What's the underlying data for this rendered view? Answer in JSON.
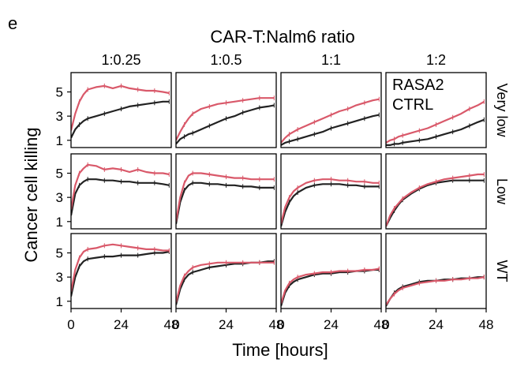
{
  "panel_label": "e",
  "colors": {
    "rasa2": "#d9596a",
    "ctrl": "#222222",
    "frame": "#000000"
  },
  "chart_data": {
    "type": "line",
    "title": "CAR-T:Nalm6 ratio",
    "xlabel": "Time [hours]",
    "ylabel": "Cancer cell killing",
    "xlim": [
      0,
      48
    ],
    "ylim": [
      0.4,
      6.6
    ],
    "xticks": [
      0,
      24,
      48
    ],
    "xtick_labels": [
      "0",
      "24",
      "48"
    ],
    "yticks": [
      1,
      3,
      5
    ],
    "ytick_labels": [
      "1",
      "3",
      "5"
    ],
    "columns": [
      "1:0.25",
      "1:0.5",
      "1:1",
      "1:2"
    ],
    "rows": [
      "Very low",
      "Low",
      "WT"
    ],
    "legend": {
      "placement": "inside top-right panel",
      "entries": [
        {
          "name": "RASA2",
          "color": "#d9596a"
        },
        {
          "name": "CTRL",
          "color": "#222222"
        }
      ]
    },
    "x": [
      0,
      2,
      4,
      6,
      8,
      12,
      16,
      20,
      24,
      28,
      32,
      36,
      40,
      44,
      47
    ],
    "panels": [
      {
        "row": "Very low",
        "col": "1:0.25",
        "series": [
          {
            "name": "RASA2",
            "values": [
              1.8,
              3.2,
              4.2,
              4.8,
              5.2,
              5.4,
              5.5,
              5.3,
              5.5,
              5.3,
              5.2,
              5.1,
              5.1,
              5.0,
              4.9
            ]
          },
          {
            "name": "CTRL",
            "values": [
              1.2,
              1.9,
              2.3,
              2.6,
              2.8,
              3.0,
              3.2,
              3.4,
              3.6,
              3.8,
              3.9,
              4.0,
              4.1,
              4.2,
              4.2
            ]
          }
        ]
      },
      {
        "row": "Very low",
        "col": "1:0.5",
        "series": [
          {
            "name": "RASA2",
            "values": [
              1.0,
              1.7,
              2.3,
              2.8,
              3.2,
              3.6,
              3.8,
              4.0,
              4.1,
              4.2,
              4.3,
              4.4,
              4.5,
              4.5,
              4.5
            ]
          },
          {
            "name": "CTRL",
            "values": [
              0.7,
              1.1,
              1.3,
              1.5,
              1.6,
              1.9,
              2.2,
              2.5,
              2.8,
              3.0,
              3.3,
              3.5,
              3.7,
              3.8,
              3.9
            ]
          }
        ]
      },
      {
        "row": "Very low",
        "col": "1:1",
        "series": [
          {
            "name": "RASA2",
            "values": [
              0.8,
              1.2,
              1.5,
              1.7,
              1.9,
              2.2,
              2.5,
              2.8,
              3.1,
              3.4,
              3.6,
              3.9,
              4.1,
              4.3,
              4.4
            ]
          },
          {
            "name": "CTRL",
            "values": [
              0.6,
              0.8,
              0.9,
              1.0,
              1.1,
              1.3,
              1.5,
              1.7,
              2.0,
              2.2,
              2.4,
              2.6,
              2.8,
              3.0,
              3.1
            ]
          }
        ]
      },
      {
        "row": "Very low",
        "col": "1:2",
        "series": [
          {
            "name": "RASA2",
            "values": [
              0.8,
              1.0,
              1.1,
              1.3,
              1.4,
              1.6,
              1.8,
              2.0,
              2.3,
              2.6,
              2.9,
              3.2,
              3.6,
              3.9,
              4.2
            ]
          },
          {
            "name": "CTRL",
            "values": [
              0.6,
              0.6,
              0.7,
              0.7,
              0.8,
              0.9,
              1.0,
              1.1,
              1.3,
              1.5,
              1.7,
              1.9,
              2.2,
              2.5,
              2.7
            ]
          }
        ]
      },
      {
        "row": "Low",
        "col": "1:0.25",
        "series": [
          {
            "name": "RASA2",
            "values": [
              2.0,
              4.0,
              5.0,
              5.4,
              5.7,
              5.6,
              5.3,
              5.4,
              5.3,
              5.1,
              5.3,
              5.1,
              5.0,
              5.0,
              4.9
            ]
          },
          {
            "name": "CTRL",
            "values": [
              1.5,
              3.3,
              4.0,
              4.3,
              4.5,
              4.5,
              4.4,
              4.4,
              4.3,
              4.3,
              4.2,
              4.2,
              4.2,
              4.1,
              4.0
            ]
          }
        ]
      },
      {
        "row": "Low",
        "col": "1:0.5",
        "series": [
          {
            "name": "RASA2",
            "values": [
              1.0,
              3.0,
              4.2,
              4.8,
              5.0,
              5.0,
              4.9,
              4.8,
              4.7,
              4.6,
              4.6,
              4.5,
              4.5,
              4.5,
              4.5
            ]
          },
          {
            "name": "CTRL",
            "values": [
              0.8,
              2.6,
              3.6,
              4.0,
              4.2,
              4.2,
              4.1,
              4.1,
              4.0,
              4.0,
              3.9,
              3.9,
              3.8,
              3.8,
              3.8
            ]
          }
        ]
      },
      {
        "row": "Low",
        "col": "1:1",
        "series": [
          {
            "name": "RASA2",
            "values": [
              0.8,
              2.2,
              3.0,
              3.5,
              3.8,
              4.2,
              4.4,
              4.5,
              4.5,
              4.4,
              4.4,
              4.3,
              4.3,
              4.2,
              4.2
            ]
          },
          {
            "name": "CTRL",
            "values": [
              0.6,
              1.8,
              2.6,
              3.1,
              3.4,
              3.8,
              4.0,
              4.1,
              4.1,
              4.1,
              4.0,
              4.0,
              3.9,
              3.9,
              3.9
            ]
          }
        ]
      },
      {
        "row": "Low",
        "col": "1:2",
        "series": [
          {
            "name": "RASA2",
            "values": [
              0.6,
              1.5,
              2.1,
              2.5,
              2.9,
              3.4,
              3.8,
              4.1,
              4.3,
              4.5,
              4.6,
              4.7,
              4.8,
              4.9,
              4.9
            ]
          },
          {
            "name": "CTRL",
            "values": [
              0.6,
              1.3,
              1.9,
              2.4,
              2.8,
              3.3,
              3.7,
              4.0,
              4.2,
              4.3,
              4.4,
              4.4,
              4.4,
              4.4,
              4.4
            ]
          }
        ]
      },
      {
        "row": "WT",
        "col": "1:0.25",
        "series": [
          {
            "name": "RASA2",
            "values": [
              1.8,
              3.6,
              4.6,
              5.1,
              5.3,
              5.4,
              5.6,
              5.7,
              5.6,
              5.5,
              5.4,
              5.3,
              5.3,
              5.2,
              5.2
            ]
          },
          {
            "name": "CTRL",
            "values": [
              1.4,
              3.0,
              3.9,
              4.3,
              4.5,
              4.6,
              4.7,
              4.7,
              4.8,
              4.8,
              4.8,
              4.9,
              5.0,
              5.0,
              5.1
            ]
          }
        ]
      },
      {
        "row": "WT",
        "col": "1:0.5",
        "series": [
          {
            "name": "RASA2",
            "values": [
              0.9,
              2.3,
              3.1,
              3.5,
              3.8,
              4.0,
              4.1,
              4.2,
              4.2,
              4.2,
              4.2,
              4.2,
              4.2,
              4.2,
              4.2
            ]
          },
          {
            "name": "CTRL",
            "values": [
              0.7,
              2.0,
              2.8,
              3.2,
              3.4,
              3.6,
              3.8,
              3.9,
              4.0,
              4.1,
              4.1,
              4.2,
              4.2,
              4.3,
              4.3
            ]
          }
        ]
      },
      {
        "row": "WT",
        "col": "1:1",
        "series": [
          {
            "name": "RASA2",
            "values": [
              0.8,
              1.9,
              2.5,
              2.8,
              3.0,
              3.2,
              3.3,
              3.4,
              3.4,
              3.5,
              3.5,
              3.5,
              3.6,
              3.6,
              3.7
            ]
          },
          {
            "name": "CTRL",
            "values": [
              0.6,
              1.7,
              2.3,
              2.6,
              2.8,
              3.0,
              3.2,
              3.3,
              3.3,
              3.4,
              3.4,
              3.5,
              3.5,
              3.6,
              3.6
            ]
          }
        ]
      },
      {
        "row": "WT",
        "col": "1:2",
        "series": [
          {
            "name": "RASA2",
            "values": [
              0.7,
              1.2,
              1.6,
              1.9,
              2.1,
              2.3,
              2.5,
              2.6,
              2.7,
              2.7,
              2.8,
              2.8,
              2.9,
              2.9,
              3.0
            ]
          },
          {
            "name": "CTRL",
            "values": [
              0.6,
              1.2,
              1.7,
              2.0,
              2.2,
              2.4,
              2.6,
              2.7,
              2.7,
              2.8,
              2.8,
              2.9,
              2.9,
              3.0,
              3.0
            ]
          }
        ]
      }
    ]
  }
}
